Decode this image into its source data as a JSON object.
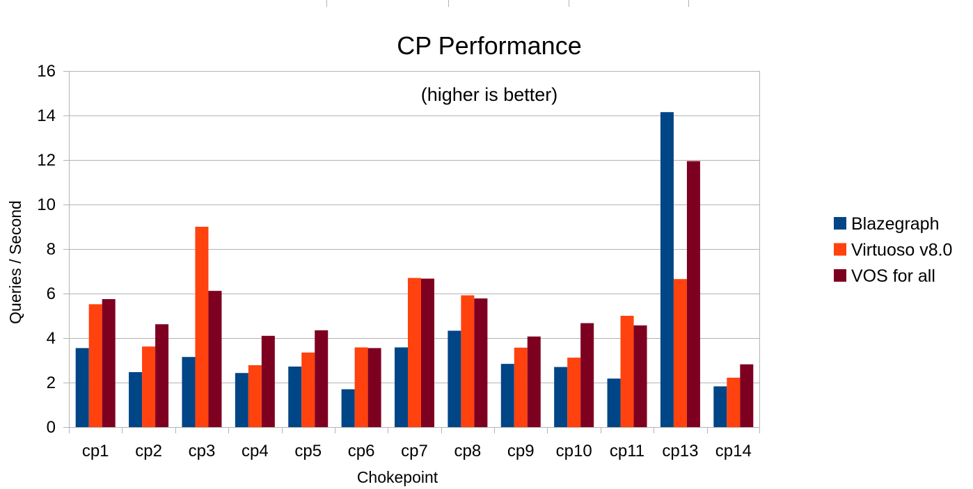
{
  "chart_data": {
    "type": "bar",
    "title": "CP Performance",
    "subtitle": "(higher is better)",
    "xlabel": "Chokepoint",
    "ylabel": "Queries / Second",
    "ylim": [
      0,
      16
    ],
    "yticks": [
      0,
      2,
      4,
      6,
      8,
      10,
      12,
      14,
      16
    ],
    "grid": true,
    "legend_position": "right",
    "categories": [
      "cp1",
      "cp2",
      "cp3",
      "cp4",
      "cp5",
      "cp6",
      "cp7",
      "cp8",
      "cp9",
      "cp10",
      "cp11",
      "cp13",
      "cp14"
    ],
    "series": [
      {
        "name": "Blazegraph",
        "color": "#004586",
        "values": [
          3.55,
          2.47,
          3.15,
          2.43,
          2.72,
          1.7,
          3.58,
          4.33,
          2.84,
          2.7,
          2.18,
          14.15,
          1.83
        ]
      },
      {
        "name": "Virtuoso v8.0",
        "color": "#ff420e",
        "values": [
          5.52,
          3.62,
          9.0,
          2.78,
          3.35,
          3.58,
          6.7,
          5.92,
          3.57,
          3.12,
          5.0,
          6.65,
          2.22
        ]
      },
      {
        "name": "VOS for all",
        "color": "#7e0021",
        "values": [
          5.75,
          4.62,
          6.12,
          4.1,
          4.35,
          3.55,
          6.67,
          5.78,
          4.07,
          4.67,
          4.57,
          11.95,
          2.82
        ]
      }
    ]
  }
}
